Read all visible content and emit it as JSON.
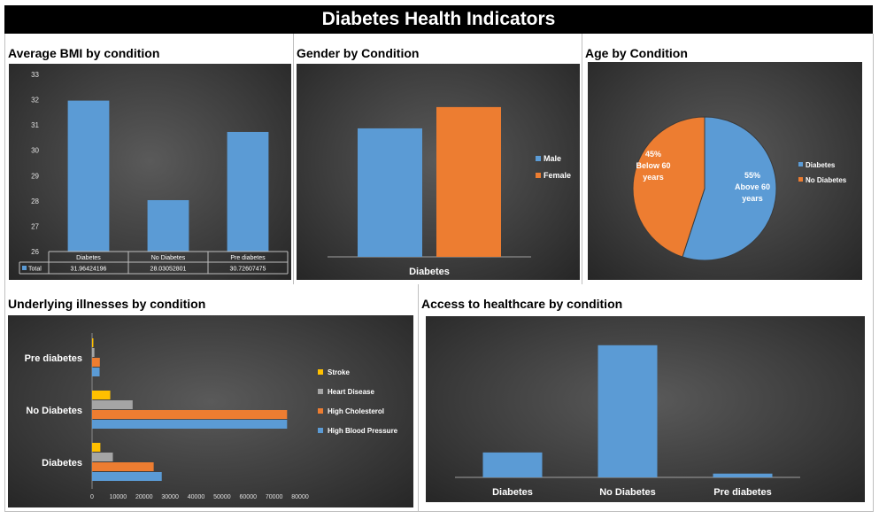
{
  "page": {
    "title": "Diabetes Health Indicators"
  },
  "panels": {
    "bmi": {
      "title": "Average BMI by condition"
    },
    "gender": {
      "title": "Gender by Condition"
    },
    "age": {
      "title": "Age by Condition"
    },
    "illness": {
      "title": "Underlying illnesses by condition"
    },
    "access": {
      "title": "Access to healthcare by condition"
    }
  },
  "chart_data": [
    {
      "id": "bmi",
      "type": "bar",
      "title": "Average BMI by condition",
      "categories": [
        "Diabetes",
        "No Diabetes",
        "Pre diabetes"
      ],
      "series": [
        {
          "name": "Total",
          "values": [
            31.96424196,
            28.03052801,
            30.72607475
          ],
          "value_labels": [
            "31.96424196",
            "28.03052801",
            "30.72607475"
          ]
        }
      ],
      "ylim": [
        26,
        33
      ],
      "yticks": [
        26,
        27,
        28,
        29,
        30,
        31,
        32,
        33
      ],
      "data_table": true,
      "color": "#5b9bd5"
    },
    {
      "id": "gender",
      "type": "bar",
      "title": "Gender by Condition",
      "categories": [
        "Diabetes"
      ],
      "series": [
        {
          "name": "Male",
          "values": [
            16300
          ],
          "color": "#5b9bd5"
        },
        {
          "name": "Female",
          "values": [
            19000
          ],
          "color": "#ed7d31"
        }
      ],
      "ylim": [
        0,
        20000
      ],
      "legend": "right"
    },
    {
      "id": "age",
      "type": "pie",
      "title": "Age by Condition",
      "slices": [
        {
          "name": "Diabetes",
          "value": 55,
          "label_pct": "55%",
          "label_text": [
            "Above 60",
            "years"
          ],
          "color": "#5b9bd5"
        },
        {
          "name": "No Diabetes",
          "value": 45,
          "label_pct": "45%",
          "label_text": [
            "Below 60",
            "years"
          ],
          "color": "#ed7d31"
        }
      ],
      "legend": "right"
    },
    {
      "id": "illness",
      "type": "bar",
      "orientation": "horizontal",
      "title": "Underlying illnesses by condition",
      "categories": [
        "Diabetes",
        "No Diabetes",
        "Pre diabetes"
      ],
      "series": [
        {
          "name": "High Blood Pressure",
          "values": [
            26800,
            75000,
            2900
          ],
          "color": "#5b9bd5"
        },
        {
          "name": "High Cholesterol",
          "values": [
            23700,
            75000,
            3000
          ],
          "color": "#ed7d31"
        },
        {
          "name": "Heart Disease",
          "values": [
            8000,
            15600,
            900
          ],
          "color": "#a5a5a5"
        },
        {
          "name": "Stroke",
          "values": [
            3200,
            7000,
            500
          ],
          "color": "#ffc000"
        }
      ],
      "xlim": [
        0,
        80000
      ],
      "xticks": [
        0,
        10000,
        20000,
        30000,
        40000,
        50000,
        60000,
        70000,
        80000
      ],
      "legend": "right"
    },
    {
      "id": "access",
      "type": "bar",
      "title": "Access to healthcare by condition",
      "categories": [
        "Diabetes",
        "No Diabetes",
        "Pre diabetes"
      ],
      "series": [
        {
          "name": "Access to healthcare",
          "values": [
            33000,
            175000,
            5000
          ]
        }
      ],
      "ylim": [
        0,
        190000
      ],
      "color": "#5b9bd5"
    }
  ]
}
